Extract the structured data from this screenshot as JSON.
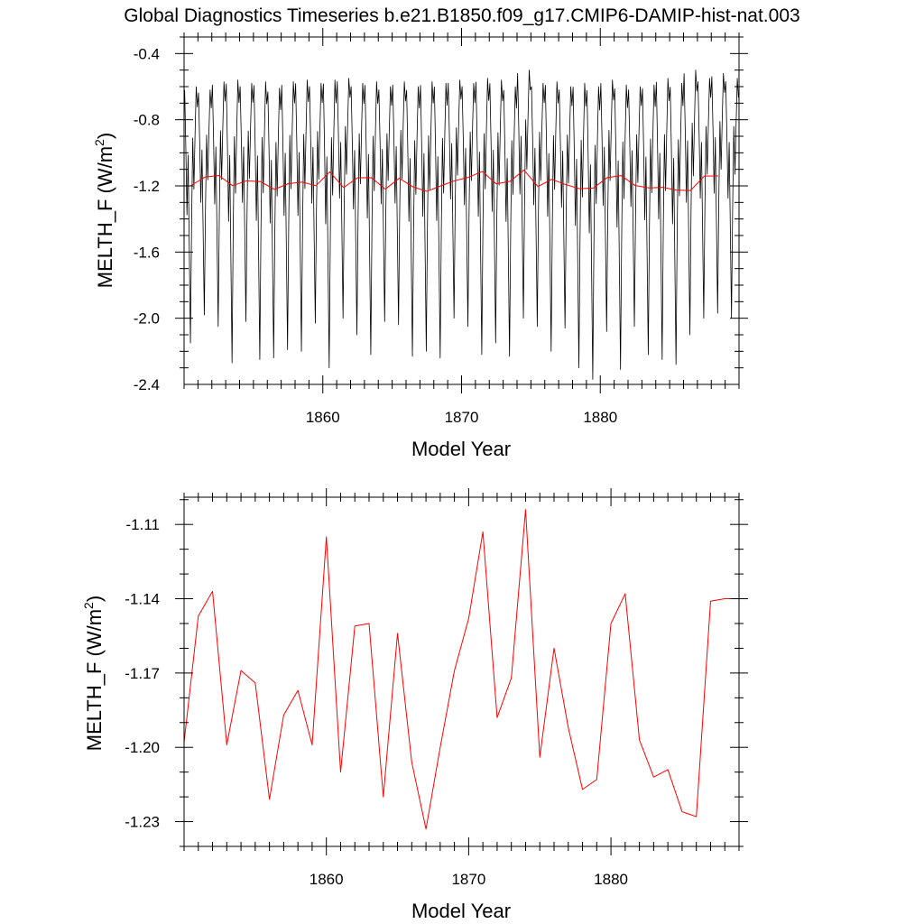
{
  "title": "Global Diagnostics Timeseries b.e21.B1850.f09_g17.CMIP6-DAMIP-hist-nat.003",
  "chart_data": [
    {
      "type": "line",
      "xlabel": "Model Year",
      "ylabel_main": "MELTH_F (W/m",
      "ylabel_sup": "2",
      "ylabel_close": ")",
      "xlim": [
        1850,
        1890
      ],
      "ylim": [
        -2.4,
        -0.3
      ],
      "xticks": [
        1860,
        1870,
        1880
      ],
      "xtick_labels": [
        "1860",
        "1870",
        "1880"
      ],
      "yticks": [
        -0.4,
        -0.8,
        -1.2,
        -1.6,
        -2.0,
        -2.4
      ],
      "ytick_labels": [
        "-0.4",
        "-0.8",
        "-1.2",
        "-1.6",
        "-2.0",
        "-2.4"
      ],
      "grid": false,
      "series": [
        {
          "color": "#000000",
          "monthly_start_year": 1850,
          "monthly_pattern": [
            -0.62,
            -0.95,
            -1.35,
            -1.0,
            -1.55,
            -2.1,
            -1.4,
            -0.9,
            -1.2,
            -0.88,
            -0.6,
            -0.72
          ],
          "annual_minima": [
            -2.15,
            -1.98,
            -2.05,
            -2.27,
            -2.02,
            -2.25,
            -2.24,
            -2.19,
            -2.2,
            -2.03,
            -2.3,
            -2.0,
            -2.1,
            -2.22,
            -2.02,
            -2.04,
            -2.23,
            -2.2,
            -2.24,
            -2.0,
            -2.05,
            -2.22,
            -2.15,
            -2.23,
            -2.0,
            -2.05,
            -2.2,
            -2.06,
            -2.3,
            -2.37,
            -2.08,
            -2.31,
            -2.05,
            -2.22,
            -2.25,
            -2.28,
            -2.1,
            -2.0,
            -1.97,
            -2.0
          ],
          "annual_maxima": [
            -0.6,
            -0.62,
            -0.57,
            -0.56,
            -0.58,
            -0.57,
            -0.61,
            -0.57,
            -0.56,
            -0.58,
            -0.56,
            -0.55,
            -0.58,
            -0.57,
            -0.6,
            -0.57,
            -0.6,
            -0.57,
            -0.58,
            -0.56,
            -0.58,
            -0.55,
            -0.56,
            -0.6,
            -0.5,
            -0.58,
            -0.57,
            -0.6,
            -0.58,
            -0.6,
            -0.56,
            -0.59,
            -0.6,
            -0.59,
            -0.55,
            -0.58,
            -0.5,
            -0.55,
            -0.52,
            -0.55
          ]
        },
        {
          "color": "#ff0000",
          "x": [
            1850.5,
            1851.5,
            1852.5,
            1853.5,
            1854.5,
            1855.5,
            1856.5,
            1857.5,
            1858.5,
            1859.5,
            1860.5,
            1861.5,
            1862.5,
            1863.5,
            1864.5,
            1865.5,
            1866.5,
            1867.5,
            1868.5,
            1869.5,
            1870.5,
            1871.5,
            1872.5,
            1873.5,
            1874.5,
            1875.5,
            1876.5,
            1877.5,
            1878.5,
            1879.5,
            1880.5,
            1881.5,
            1882.5,
            1883.5,
            1884.5,
            1885.5,
            1886.5,
            1887.5,
            1888.5
          ],
          "y": [
            -1.198,
            -1.147,
            -1.137,
            -1.199,
            -1.169,
            -1.174,
            -1.221,
            -1.187,
            -1.177,
            -1.199,
            -1.115,
            -1.21,
            -1.151,
            -1.15,
            -1.22,
            -1.154,
            -1.206,
            -1.233,
            -1.2,
            -1.169,
            -1.148,
            -1.113,
            -1.188,
            -1.172,
            -1.104,
            -1.204,
            -1.16,
            -1.192,
            -1.217,
            -1.213,
            -1.15,
            -1.138,
            -1.197,
            -1.212,
            -1.209,
            -1.226,
            -1.228,
            -1.141,
            -1.14
          ]
        }
      ]
    },
    {
      "type": "line",
      "xlabel": "Model Year",
      "ylabel_main": "MELTH_F (W/m",
      "ylabel_sup": "2",
      "ylabel_close": ")",
      "xlim": [
        1850,
        1889
      ],
      "ylim": [
        -1.24,
        -1.099
      ],
      "xticks": [
        1860,
        1870,
        1880
      ],
      "xtick_labels": [
        "1860",
        "1870",
        "1880"
      ],
      "yticks": [
        -1.11,
        -1.14,
        -1.17,
        -1.2,
        -1.23
      ],
      "ytick_labels": [
        "-1.11",
        "-1.14",
        "-1.17",
        "-1.20",
        "-1.23"
      ],
      "grid": false,
      "series": [
        {
          "color": "#ff0000",
          "x": [
            1850,
            1851,
            1852,
            1853,
            1854,
            1855,
            1856,
            1857,
            1858,
            1859,
            1860,
            1861,
            1862,
            1863,
            1864,
            1865,
            1866,
            1867,
            1868,
            1869,
            1870,
            1871,
            1872,
            1873,
            1874,
            1875,
            1876,
            1877,
            1878,
            1879,
            1880,
            1881,
            1882,
            1883,
            1884,
            1885,
            1886,
            1887,
            1888,
            1889
          ],
          "y": [
            -1.198,
            -1.147,
            -1.137,
            -1.199,
            -1.169,
            -1.174,
            -1.221,
            -1.187,
            -1.177,
            -1.199,
            -1.115,
            -1.21,
            -1.151,
            -1.15,
            -1.22,
            -1.154,
            -1.206,
            -1.233,
            -1.2,
            -1.169,
            -1.148,
            -1.113,
            -1.188,
            -1.172,
            -1.104,
            -1.204,
            -1.16,
            -1.192,
            -1.217,
            -1.213,
            -1.15,
            -1.138,
            -1.197,
            -1.212,
            -1.209,
            -1.226,
            -1.228,
            -1.141,
            -1.14,
            -1.14
          ]
        }
      ]
    }
  ]
}
